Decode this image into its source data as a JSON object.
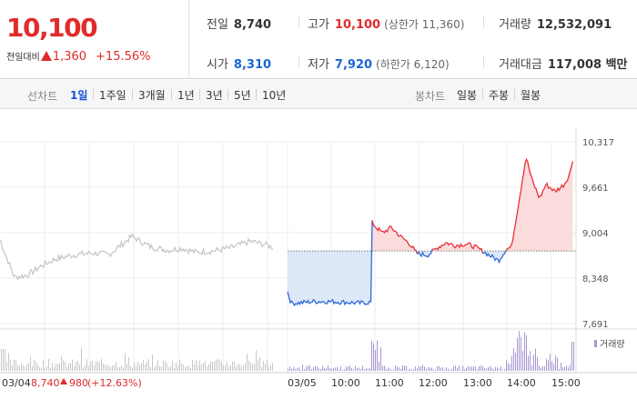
{
  "quote": {
    "price": "10,100",
    "change_label": "전일대비",
    "change_value": "1,360",
    "change_pct": "+15.56%",
    "prev_close_label": "전일",
    "prev_close": "8,740",
    "high_label": "고가",
    "high": "10,100",
    "upper_limit": "(상한가 11,360)",
    "volume_label": "거래량",
    "volume": "12,532,091",
    "open_label": "시가",
    "open": "8,310",
    "low_label": "저가",
    "low": "7,920",
    "lower_limit": "(하한가 6,120)",
    "amount_label": "거래대금",
    "amount": "117,008 백만"
  },
  "line_periods": {
    "title": "선차트",
    "items": [
      "1일",
      "1주일",
      "3개월",
      "1년",
      "3년",
      "5년",
      "10년"
    ],
    "active": 0
  },
  "candle_periods": {
    "title": "봉차트",
    "items": [
      "일봉",
      "주봉",
      "월봉"
    ]
  },
  "chart_data": {
    "type": "line",
    "y_ticks": [
      "10,317",
      "9,661",
      "9,004",
      "8,348",
      "7,691"
    ],
    "ylim": [
      7691,
      10317
    ],
    "baseline": 8740,
    "x_tick_labels": [
      "03/05",
      "10:00",
      "11:00",
      "12:00",
      "13:00",
      "14:00",
      "15:00"
    ],
    "prev_day_label": "03/04",
    "prev_day_summary": {
      "close": "8,740",
      "change": "980",
      "change_pct": "(+12.63%)"
    },
    "volume_legend": "거래량",
    "colors": {
      "up": "#e8303a",
      "down": "#2f6ad8",
      "prev": "#c4c4c4",
      "up_fill": "#fbdcdc",
      "down_fill": "#dde8f8",
      "volume": "#a896d2",
      "volume_prev": "#c8c8c8"
    }
  }
}
